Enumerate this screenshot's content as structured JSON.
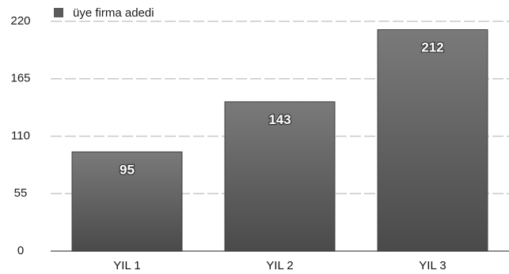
{
  "chart_data": {
    "type": "bar",
    "categories": [
      "YIL 1",
      "YIL 2",
      "YIL 3"
    ],
    "series": [
      {
        "name": "üye firma adedi",
        "values": [
          95,
          143,
          212
        ]
      }
    ],
    "title": "",
    "xlabel": "",
    "ylabel": "",
    "ylim": [
      0,
      220
    ],
    "yticks": [
      0,
      55,
      110,
      165,
      220
    ],
    "grid": true,
    "legend": "top-left",
    "bar_color": "#5a5a5a"
  }
}
